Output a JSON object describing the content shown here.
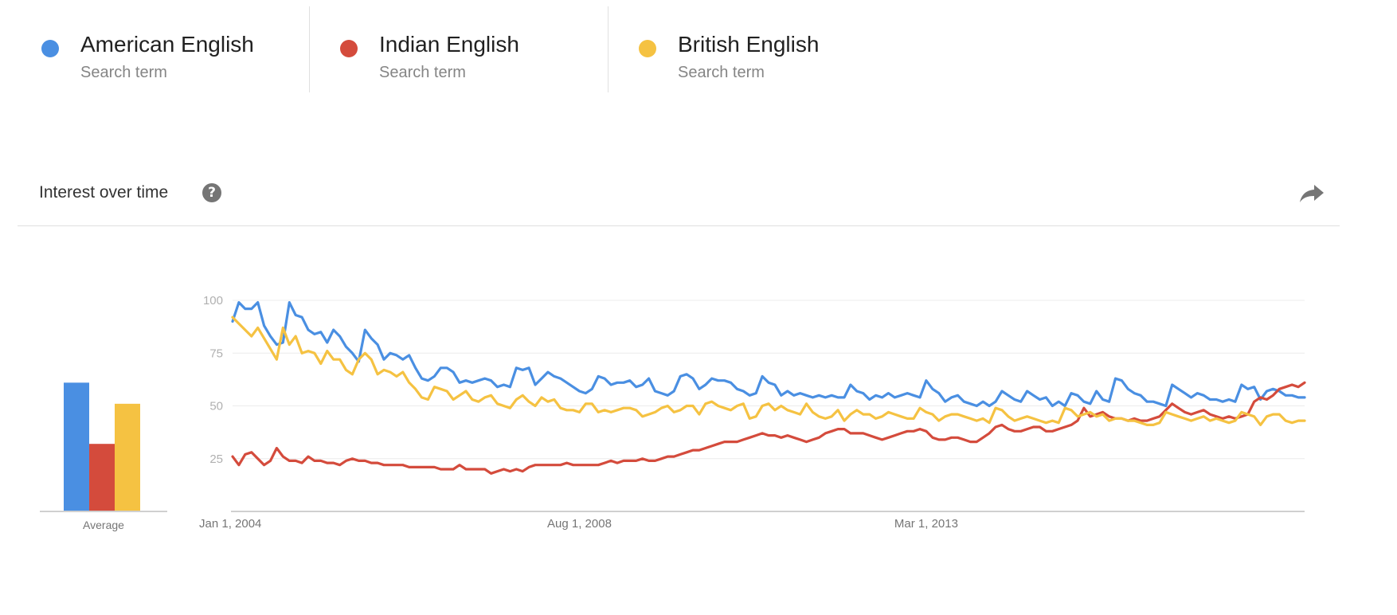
{
  "terms": [
    {
      "name": "American English",
      "subtitle": "Search term",
      "color": "#4A8FE2"
    },
    {
      "name": "Indian English",
      "subtitle": "Search term",
      "color": "#D44B3C"
    },
    {
      "name": "British English",
      "subtitle": "Search term",
      "color": "#F5C242"
    }
  ],
  "section": {
    "title": "Interest over time",
    "help_icon": "question-mark-circle",
    "share_icon": "share-arrow"
  },
  "chart_data": {
    "type": "line",
    "title": "Interest over time",
    "ylim": [
      0,
      100
    ],
    "y_ticks": [
      25,
      50,
      75,
      100
    ],
    "x_tick_labels": [
      "Jan 1, 2004",
      "Aug 1, 2008",
      "Mar 1, 2013"
    ],
    "x_start": "2004-01",
    "grid": true,
    "average_label": "Average",
    "averages": [
      {
        "name": "American English",
        "value": 61
      },
      {
        "name": "Indian English",
        "value": 32
      },
      {
        "name": "British English",
        "value": 51
      }
    ],
    "series": [
      {
        "name": "American English",
        "color": "#4A8FE2",
        "values": [
          90,
          99,
          96,
          96,
          99,
          88,
          83,
          79,
          80,
          99,
          93,
          92,
          86,
          84,
          85,
          80,
          86,
          83,
          78,
          75,
          71,
          86,
          82,
          79,
          72,
          75,
          74,
          72,
          74,
          68,
          63,
          62,
          64,
          68,
          68,
          66,
          61,
          62,
          61,
          62,
          63,
          62,
          59,
          60,
          59,
          68,
          67,
          68,
          60,
          63,
          66,
          64,
          63,
          61,
          59,
          57,
          56,
          58,
          64,
          63,
          60,
          61,
          61,
          62,
          59,
          60,
          63,
          57,
          56,
          55,
          57,
          64,
          65,
          63,
          58,
          60,
          63,
          62,
          62,
          61,
          58,
          57,
          55,
          56,
          64,
          61,
          60,
          55,
          57,
          55,
          56,
          55,
          54,
          55,
          54,
          55,
          54,
          54,
          60,
          57,
          56,
          53,
          55,
          54,
          56,
          54,
          55,
          56,
          55,
          54,
          62,
          58,
          56,
          52,
          54,
          55,
          52,
          51,
          50,
          52,
          50,
          52,
          57,
          55,
          53,
          52,
          57,
          55,
          53,
          54,
          50,
          52,
          50,
          56,
          55,
          52,
          51,
          57,
          53,
          52,
          63,
          62,
          58,
          56,
          55,
          52,
          52,
          51,
          50,
          60,
          58,
          56,
          54,
          56,
          55,
          53,
          53,
          52,
          53,
          52,
          60,
          58,
          59,
          53,
          57,
          58,
          57,
          55,
          55,
          54,
          54
        ]
      },
      {
        "name": "Indian English",
        "color": "#D44B3C",
        "values": [
          26,
          22,
          27,
          28,
          25,
          22,
          24,
          30,
          26,
          24,
          24,
          23,
          26,
          24,
          24,
          23,
          23,
          22,
          24,
          25,
          24,
          24,
          23,
          23,
          22,
          22,
          22,
          22,
          21,
          21,
          21,
          21,
          21,
          20,
          20,
          20,
          22,
          20,
          20,
          20,
          20,
          18,
          19,
          20,
          19,
          20,
          19,
          21,
          22,
          22,
          22,
          22,
          22,
          23,
          22,
          22,
          22,
          22,
          22,
          23,
          24,
          23,
          24,
          24,
          24,
          25,
          24,
          24,
          25,
          26,
          26,
          27,
          28,
          29,
          29,
          30,
          31,
          32,
          33,
          33,
          33,
          34,
          35,
          36,
          37,
          36,
          36,
          35,
          36,
          35,
          34,
          33,
          34,
          35,
          37,
          38,
          39,
          39,
          37,
          37,
          37,
          36,
          35,
          34,
          35,
          36,
          37,
          38,
          38,
          39,
          38,
          35,
          34,
          34,
          35,
          35,
          34,
          33,
          33,
          35,
          37,
          40,
          41,
          39,
          38,
          38,
          39,
          40,
          40,
          38,
          38,
          39,
          40,
          41,
          43,
          49,
          45,
          46,
          47,
          45,
          44,
          44,
          43,
          44,
          43,
          43,
          44,
          45,
          48,
          51,
          49,
          47,
          46,
          47,
          48,
          46,
          45,
          44,
          45,
          44,
          45,
          46,
          52,
          54,
          53,
          55,
          58,
          59,
          60,
          59,
          61
        ]
      },
      {
        "name": "British English",
        "color": "#F5C242",
        "values": [
          92,
          89,
          86,
          83,
          87,
          82,
          77,
          72,
          87,
          79,
          83,
          75,
          76,
          75,
          70,
          76,
          72,
          72,
          67,
          65,
          72,
          75,
          72,
          65,
          67,
          66,
          64,
          66,
          61,
          58,
          54,
          53,
          59,
          58,
          57,
          53,
          55,
          57,
          53,
          52,
          54,
          55,
          51,
          50,
          49,
          53,
          55,
          52,
          50,
          54,
          52,
          53,
          49,
          48,
          48,
          47,
          51,
          51,
          47,
          48,
          47,
          48,
          49,
          49,
          48,
          45,
          46,
          47,
          49,
          50,
          47,
          48,
          50,
          50,
          46,
          51,
          52,
          50,
          49,
          48,
          50,
          51,
          44,
          45,
          50,
          51,
          48,
          50,
          48,
          47,
          46,
          51,
          47,
          45,
          44,
          45,
          48,
          43,
          46,
          48,
          46,
          46,
          44,
          45,
          47,
          46,
          45,
          44,
          44,
          49,
          47,
          46,
          43,
          45,
          46,
          46,
          45,
          44,
          43,
          44,
          42,
          49,
          48,
          45,
          43,
          44,
          45,
          44,
          43,
          42,
          43,
          42,
          49,
          48,
          45,
          46,
          47,
          45,
          46,
          43,
          44,
          44,
          43,
          43,
          42,
          41,
          41,
          42,
          47,
          46,
          45,
          44,
          43,
          44,
          45,
          43,
          44,
          43,
          42,
          43,
          47,
          46,
          45,
          41,
          45,
          46,
          46,
          43,
          42,
          43,
          43
        ]
      }
    ]
  }
}
